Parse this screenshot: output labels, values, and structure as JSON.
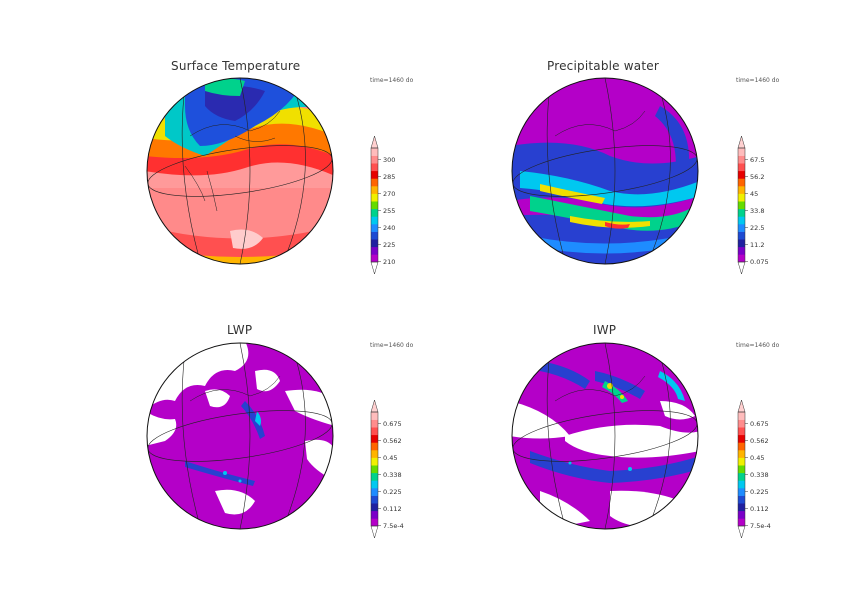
{
  "colors": {
    "colorbar": [
      "#b400c8",
      "#7a00c8",
      "#2020a0",
      "#1e4ad2",
      "#1e8cff",
      "#00c8f0",
      "#00d28c",
      "#64dc00",
      "#f0f000",
      "#ffb400",
      "#ff6400",
      "#e60000",
      "#ff5050",
      "#ff8c8c",
      "#ffbcbc"
    ],
    "temperature": {
      "warm": "#ff8a8a",
      "mid": "#ff3030",
      "hot_band": "#ff8c00",
      "cold": "#1e50dc",
      "ice": "#00c8c8"
    },
    "moisture": {
      "dry": "#b400c8",
      "band": "#2840d0",
      "wet": "#00d0a0",
      "very_wet": "#f0e000"
    }
  },
  "panels": [
    {
      "id": "surface-temperature",
      "title": "Surface Temperature",
      "time_label": "time=1460 do",
      "colorbar_ticks": [
        "300",
        "285",
        "270",
        "255",
        "240",
        "225",
        "210"
      ]
    },
    {
      "id": "precipitable-water",
      "title": "Precipitable water",
      "time_label": "time=1460 do",
      "colorbar_ticks": [
        "67.5",
        "56.2",
        "45",
        "33.8",
        "22.5",
        "11.2",
        "0.075"
      ]
    },
    {
      "id": "lwp",
      "title": "LWP",
      "time_label": "time=1460 do",
      "colorbar_ticks": [
        "0.675",
        "0.562",
        "0.45",
        "0.338",
        "0.225",
        "0.112",
        "7.5e-4"
      ]
    },
    {
      "id": "iwp",
      "title": "IWP",
      "time_label": "time=1460 do",
      "colorbar_ticks": [
        "0.675",
        "0.562",
        "0.45",
        "0.338",
        "0.225",
        "0.112",
        "7.5e-4"
      ]
    }
  ]
}
